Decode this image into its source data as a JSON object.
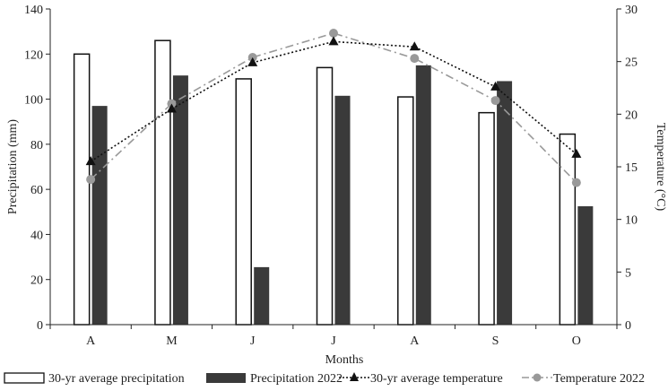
{
  "chart_data": {
    "type": "bar+line",
    "categories": [
      "A",
      "M",
      "J",
      "J",
      "A",
      "S",
      "O"
    ],
    "xlabel": "Months",
    "ylabel_left": "Precipitation (mm)",
    "ylabel_right": "Temperature (°C)",
    "ylim_left": [
      0,
      140
    ],
    "ylim_right": [
      0,
      30
    ],
    "yticks_left": [
      0,
      20,
      40,
      60,
      80,
      100,
      120,
      140
    ],
    "yticks_right": [
      0,
      5,
      10,
      15,
      20,
      25,
      30
    ],
    "grid": false,
    "legend_position": "bottom",
    "series": [
      {
        "name": "30-yr average precipitation",
        "kind": "bar",
        "axis": "left",
        "style": "hollow",
        "values": [
          120,
          126,
          109,
          114,
          101,
          94,
          84.5
        ]
      },
      {
        "name": "Precipitation 2022",
        "kind": "bar",
        "axis": "left",
        "style": "filled",
        "color": "#3a3a3a",
        "values": [
          97,
          110.5,
          25.5,
          101.5,
          115,
          108,
          52.5
        ]
      },
      {
        "name": "30-yr average temperature",
        "kind": "line",
        "axis": "right",
        "style": "dotted",
        "marker": "triangle",
        "color": "#111111",
        "values": [
          15.5,
          20.5,
          24.9,
          26.9,
          26.4,
          22.6,
          16.2
        ]
      },
      {
        "name": "Temperature 2022",
        "kind": "line",
        "axis": "right",
        "style": "dashdot",
        "marker": "circle",
        "color": "#999999",
        "values": [
          13.8,
          21.0,
          25.4,
          27.7,
          25.3,
          21.3,
          13.5
        ]
      }
    ]
  }
}
